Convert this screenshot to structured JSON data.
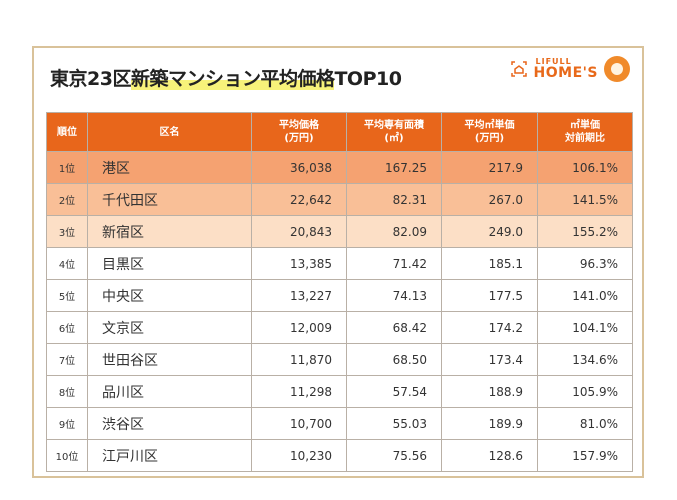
{
  "title_prefix": "東京23区",
  "title_highlight": "新築マンション平均価格",
  "title_suffix": "TOP10",
  "logo": {
    "small": "LIFULL",
    "big": "HOME'S",
    "brand_color": "#e8661b"
  },
  "headers": [
    "順位",
    "区名",
    "平均価格\n(万円)",
    "平均専有面積\n(㎡)",
    "平均㎡単価\n(万円)",
    "㎡単価\n対前期比"
  ],
  "rows": [
    [
      "1位",
      "港区",
      "36,038",
      "167.25",
      "217.9",
      "106.1%"
    ],
    [
      "2位",
      "千代田区",
      "22,642",
      "82.31",
      "267.0",
      "141.5%"
    ],
    [
      "3位",
      "新宿区",
      "20,843",
      "82.09",
      "249.0",
      "155.2%"
    ],
    [
      "4位",
      "目黒区",
      "13,385",
      "71.42",
      "185.1",
      "96.3%"
    ],
    [
      "5位",
      "中央区",
      "13,227",
      "74.13",
      "177.5",
      "141.0%"
    ],
    [
      "6位",
      "文京区",
      "12,009",
      "68.42",
      "174.2",
      "104.1%"
    ],
    [
      "7位",
      "世田谷区",
      "11,870",
      "68.50",
      "173.4",
      "134.6%"
    ],
    [
      "8位",
      "品川区",
      "11,298",
      "57.54",
      "188.9",
      "105.9%"
    ],
    [
      "9位",
      "渋谷区",
      "10,700",
      "55.03",
      "189.9",
      "81.0%"
    ],
    [
      "10位",
      "江戸川区",
      "10,230",
      "75.56",
      "128.6",
      "157.9%"
    ]
  ]
}
